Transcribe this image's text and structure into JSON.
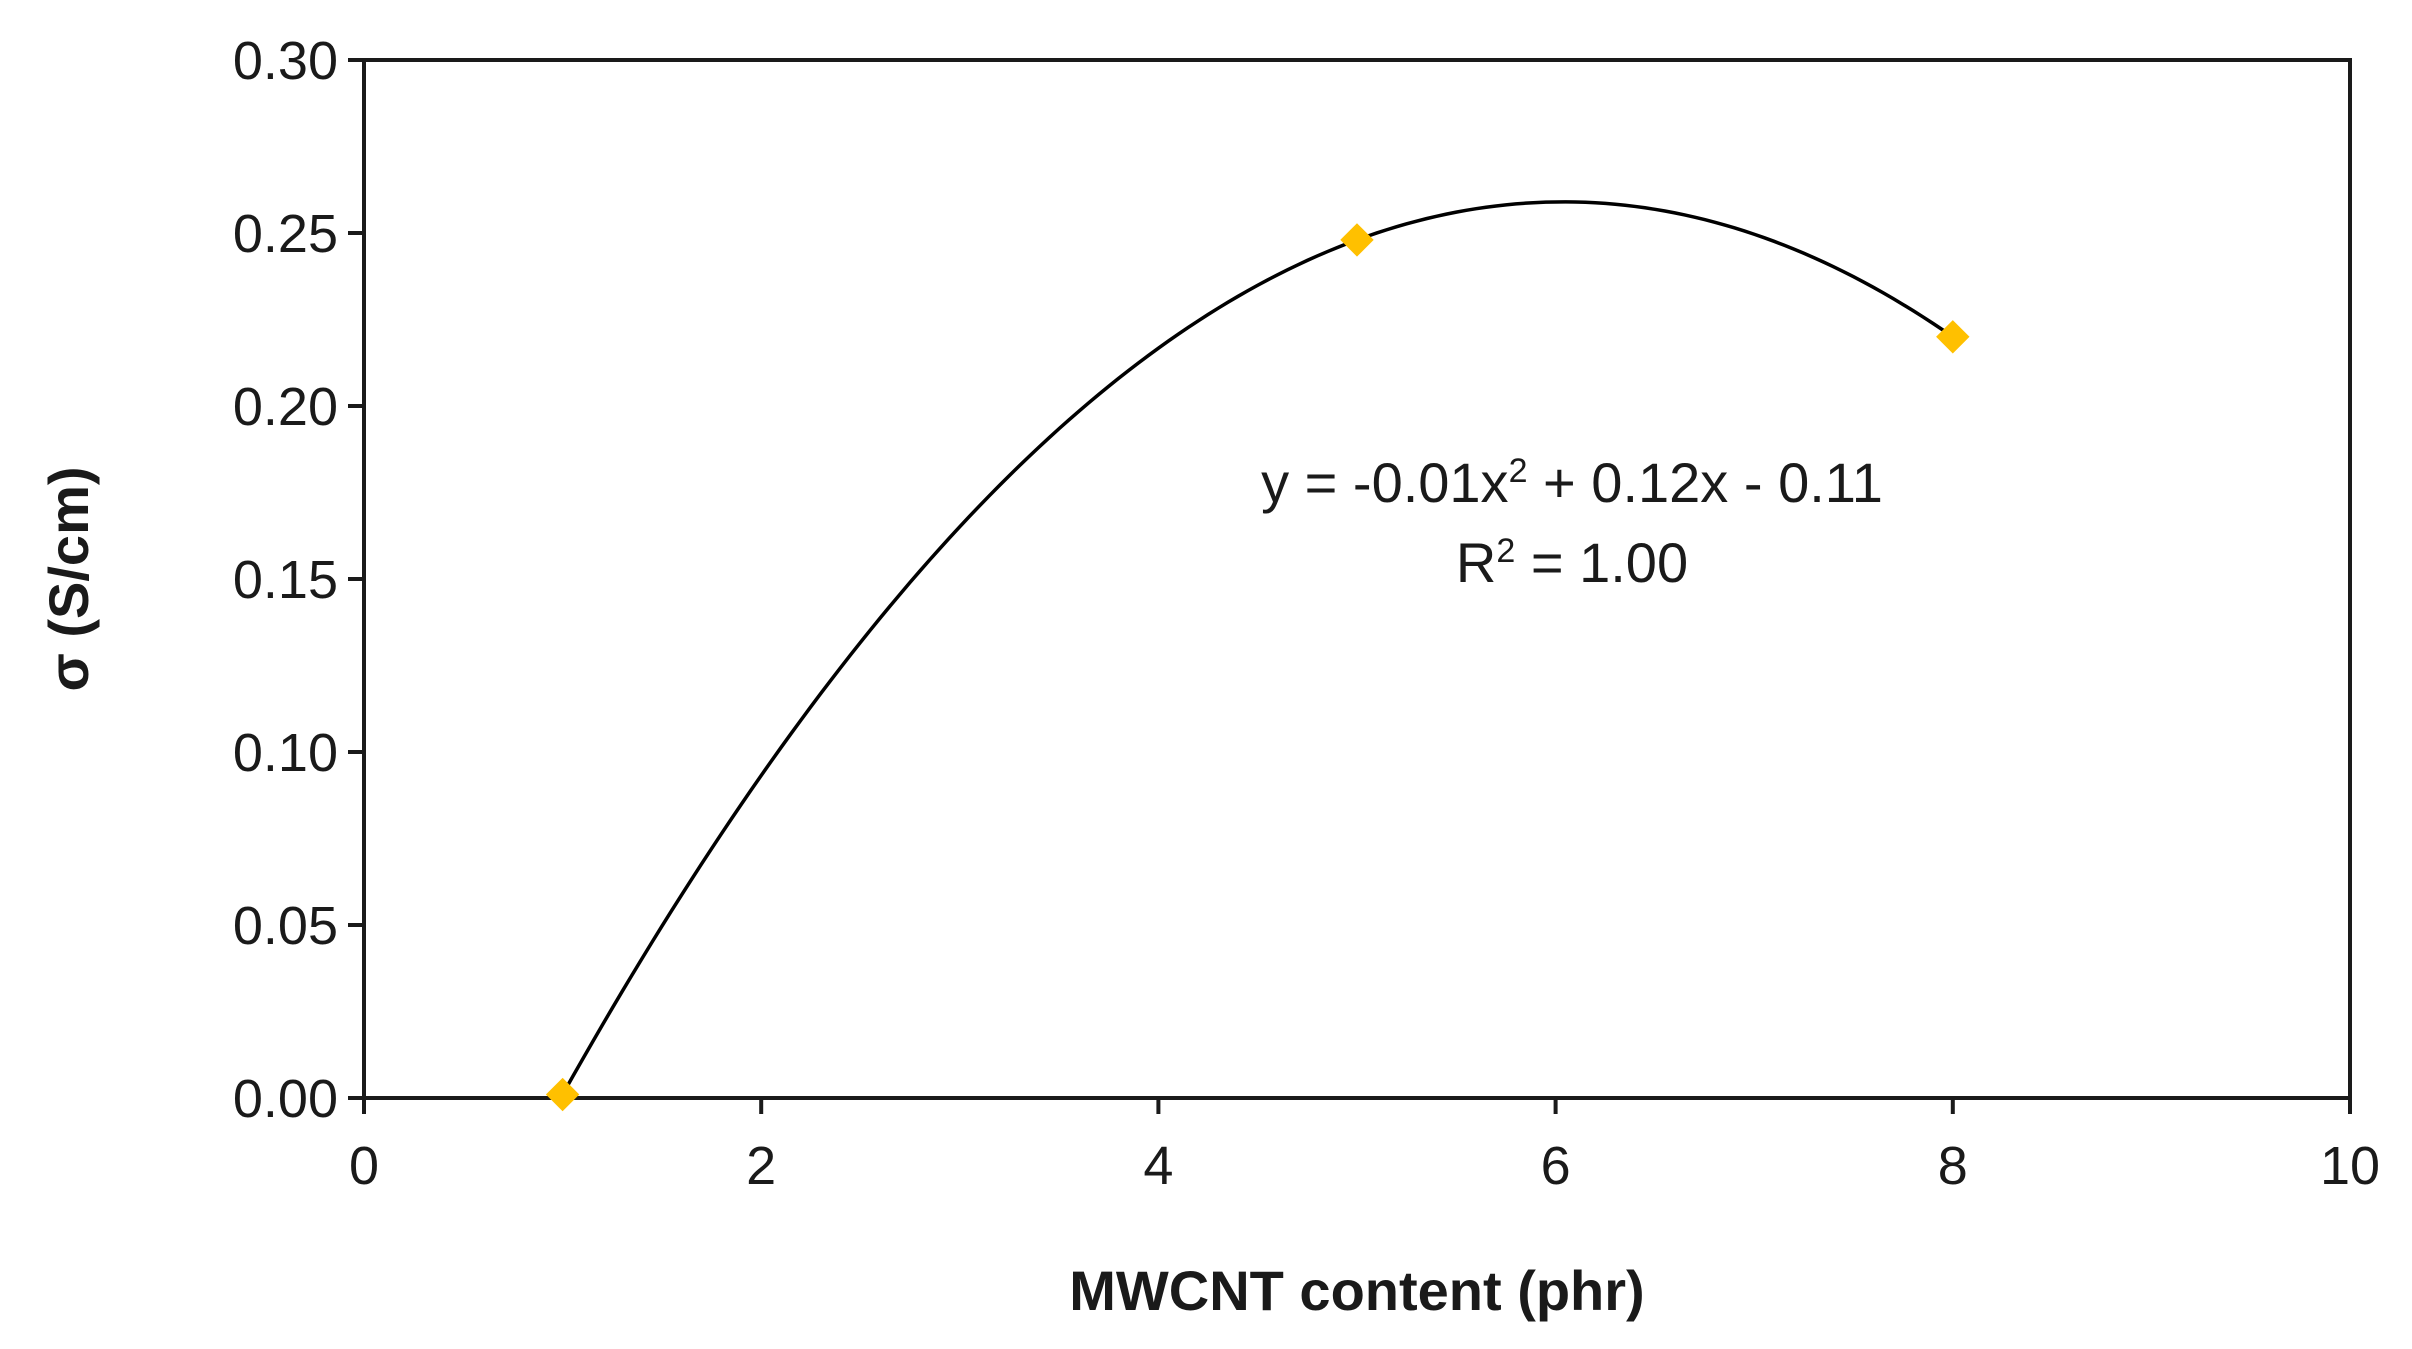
{
  "chart_data": {
    "type": "scatter",
    "xlabel": "MWCNT content (phr)",
    "ylabel": "σ (S/cm)",
    "xlim": [
      0,
      10
    ],
    "ylim": [
      0,
      0.3
    ],
    "x_ticks": [
      0,
      2,
      4,
      6,
      8,
      10
    ],
    "y_ticks": [
      0,
      0.05,
      0.1,
      0.15,
      0.2,
      0.25,
      0.3
    ],
    "x_tick_labels": [
      "0",
      "2",
      "4",
      "6",
      "8",
      "10"
    ],
    "y_tick_labels": [
      "0.00",
      "0.05",
      "0.10",
      "0.15",
      "0.20",
      "0.25",
      "0.30"
    ],
    "grid": false,
    "series": [
      {
        "x": [
          1,
          5,
          8
        ],
        "y": [
          0.001,
          0.248,
          0.22
        ],
        "marker": "diamond",
        "color": "#FFC000"
      }
    ],
    "trendline": {
      "type": "polynomial",
      "order": 2,
      "color": "#000000",
      "x_range": [
        1,
        8
      ]
    },
    "annotation": {
      "equation": {
        "prefix": "y = -0.01x",
        "sup": "2",
        "suffix": " + 0.12x - 0.11"
      },
      "r_squared": {
        "prefix": "R",
        "sup": "2",
        "suffix": " = 1.00"
      }
    }
  }
}
